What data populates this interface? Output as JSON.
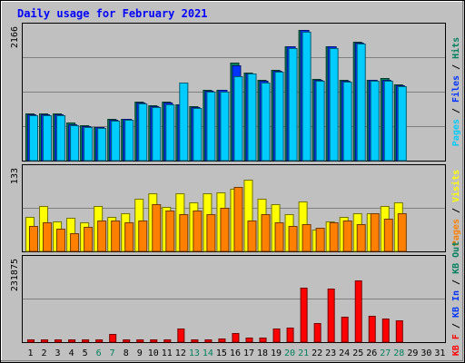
{
  "chart_data": {
    "type": "bar",
    "title": "Daily usage for February 2021",
    "x_labels": [
      "1",
      "2",
      "3",
      "4",
      "5",
      "6",
      "7",
      "8",
      "9",
      "10",
      "11",
      "12",
      "13",
      "14",
      "15",
      "16",
      "17",
      "18",
      "19",
      "20",
      "21",
      "22",
      "23",
      "24",
      "25",
      "26",
      "27",
      "28",
      "29",
      "30",
      "31"
    ],
    "weekend_days": [
      6,
      7,
      13,
      14,
      20,
      21,
      27,
      28
    ],
    "panels": [
      {
        "id": "hits",
        "y_tick_label": "2166",
        "y_max": 2166,
        "axis_title_parts": [
          {
            "text": "Pages",
            "color": "#00ccff"
          },
          {
            "text": " / ",
            "color": "#000000"
          },
          {
            "text": "Files",
            "color": "#0033ff"
          },
          {
            "text": " / ",
            "color": "#000000"
          },
          {
            "text": "Hits",
            "color": "#008060"
          }
        ],
        "series": [
          {
            "key": "hits",
            "color": "#00805c",
            "values": [
              785,
              775,
              780,
              630,
              590,
              560,
              690,
              690,
              985,
              925,
              975,
              940,
              905,
              1175,
              1180,
              1625,
              1460,
              1345,
              1510,
              1900,
              2166,
              1350,
              1900,
              1335,
              1970,
              1345,
              1365,
              1270,
              0,
              0,
              0
            ]
          },
          {
            "key": "files",
            "color": "#0033ff",
            "values": [
              770,
              760,
              770,
              600,
              570,
              555,
              680,
              685,
              970,
              910,
              960,
              930,
              890,
              1160,
              1170,
              1580,
              1445,
              1325,
              1495,
              1890,
              2166,
              1335,
              1890,
              1325,
              1960,
              1335,
              1345,
              1255,
              0,
              0,
              0
            ]
          },
          {
            "key": "pages",
            "color": "#00ccff",
            "values": [
              755,
              750,
              755,
              590,
              560,
              540,
              665,
              670,
              945,
              885,
              930,
              1290,
              870,
              1145,
              1140,
              1395,
              1440,
              1290,
              1480,
              1870,
              2130,
              1320,
              1870,
              1310,
              1935,
              1320,
              1325,
              1230,
              0,
              0,
              0
            ]
          }
        ]
      },
      {
        "id": "visits",
        "y_tick_label": "133",
        "y_max": 133,
        "axis_title_parts": [
          {
            "text": "Pages",
            "color": "#ff8000"
          },
          {
            "text": " / ",
            "color": "#000000"
          },
          {
            "text": "Visits",
            "color": "#ffff00"
          }
        ],
        "series": [
          {
            "key": "visits",
            "color": "#ffff00",
            "values": [
              58,
              76,
              50,
              56,
              48,
              76,
              58,
              64,
              87,
              96,
              74,
              97,
              82,
              96,
              98,
              105,
              120,
              88,
              79,
              62,
              83,
              37,
              50,
              58,
              64,
              63,
              76,
              82,
              0,
              0,
              0
            ]
          },
          {
            "key": "sites",
            "color": "#ff8000",
            "values": [
              42,
              49,
              38,
              30,
              41,
              52,
              52,
              48,
              52,
              78,
              68,
              62,
              68,
              62,
              72,
              107,
              52,
              62,
              48,
              43,
              45,
              39,
              48,
              52,
              46,
              63,
              55,
              63,
              0,
              0,
              0
            ]
          }
        ]
      },
      {
        "id": "kbytes",
        "y_tick_label": "231875",
        "y_max": 231875,
        "axis_title_parts": [
          {
            "text": "KB F",
            "color": "#ff0000"
          },
          {
            "text": " / ",
            "color": "#000000"
          },
          {
            "text": "KB In",
            "color": "#0033ff"
          },
          {
            "text": " / ",
            "color": "#000000"
          },
          {
            "text": "KB Out",
            "color": "#008060"
          }
        ],
        "series": [
          {
            "key": "kbf",
            "color": "#ff0000",
            "values": [
              7500,
              8000,
              8500,
              7500,
              7800,
              7500,
              23000,
              8500,
              8500,
              9000,
              8000,
              40000,
              8000,
              8500,
              10000,
              26000,
              14000,
              12000,
              40000,
              43000,
              158000,
              55000,
              155000,
              75000,
              178000,
              77000,
              68000,
              62000,
              0,
              0,
              0
            ]
          }
        ]
      }
    ]
  }
}
